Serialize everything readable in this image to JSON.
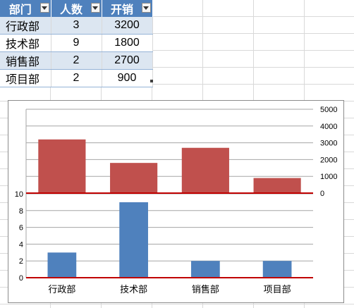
{
  "table": {
    "headers": [
      "部门",
      "人数",
      "开销"
    ],
    "rows": [
      {
        "dept": "行政部",
        "count": "3",
        "cost": "3200"
      },
      {
        "dept": "技术部",
        "count": "9",
        "cost": "1800"
      },
      {
        "dept": "销售部",
        "count": "2",
        "cost": "2700"
      },
      {
        "dept": "项目部",
        "count": "2",
        "cost": "900"
      }
    ],
    "header_color": "#4f81bd",
    "band_color": "#dce6f1"
  },
  "chart_data": {
    "type": "bar",
    "categories": [
      "行政部",
      "技术部",
      "销售部",
      "项目部"
    ],
    "series": [
      {
        "values": [
          3200,
          1800,
          2700,
          900
        ],
        "color": "#c0504d",
        "axis": "right",
        "panel": "top"
      },
      {
        "values": [
          3,
          9,
          2,
          2
        ],
        "color": "#4f81bd",
        "axis": "left",
        "panel": "bottom"
      }
    ],
    "top_axis": {
      "ylim": [
        0,
        5000
      ],
      "ticks": [
        "0",
        "1000",
        "2000",
        "3000",
        "4000",
        "5000"
      ]
    },
    "bottom_axis": {
      "ylim": [
        0,
        10
      ],
      "ticks": [
        "0",
        "2",
        "4",
        "6",
        "8",
        "10"
      ]
    },
    "baseline_color": "#c00000",
    "grid": true,
    "legend": "none"
  }
}
